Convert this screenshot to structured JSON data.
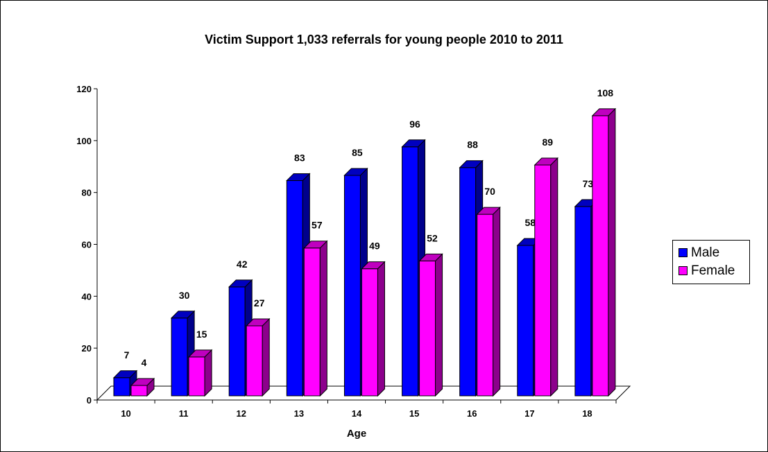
{
  "chart_data": {
    "type": "bar",
    "title": "Victim Support 1,033 referrals for young people 2010 to 2011",
    "xlabel": "Age",
    "ylabel": "",
    "categories": [
      "10",
      "11",
      "12",
      "13",
      "14",
      "15",
      "16",
      "17",
      "18"
    ],
    "series": [
      {
        "name": "Male",
        "color": "#0000ff",
        "values": [
          7,
          30,
          42,
          83,
          85,
          96,
          88,
          58,
          73
        ]
      },
      {
        "name": "Female",
        "color": "#ff00ff",
        "values": [
          4,
          15,
          27,
          57,
          49,
          52,
          70,
          89,
          108
        ]
      }
    ],
    "ylim": [
      0,
      120
    ],
    "yticks": [
      "0",
      "20",
      "40",
      "60",
      "80",
      "100",
      "120"
    ],
    "grid": false,
    "legend_position": "right",
    "style": "3d-bar"
  }
}
